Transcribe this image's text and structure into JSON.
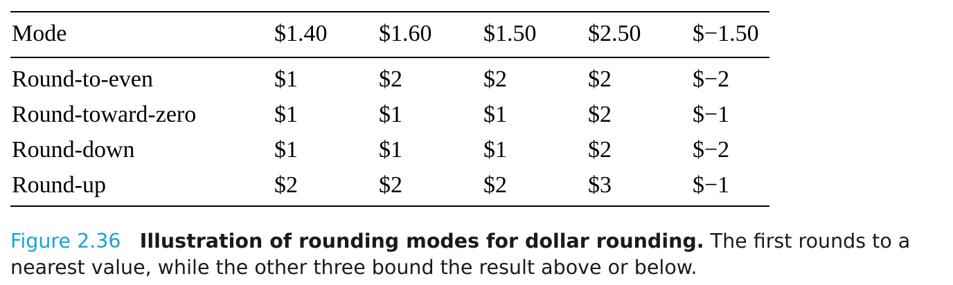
{
  "table": {
    "headers": [
      "Mode",
      "$1.40",
      "$1.60",
      "$1.50",
      "$2.50",
      "$−1.50"
    ],
    "rows": [
      [
        "Round-to-even",
        "$1",
        "$2",
        "$2",
        "$2",
        "$−2"
      ],
      [
        "Round-toward-zero",
        "$1",
        "$1",
        "$1",
        "$2",
        "$−1"
      ],
      [
        "Round-down",
        "$1",
        "$1",
        "$1",
        "$2",
        "$−2"
      ],
      [
        "Round-up",
        "$2",
        "$2",
        "$2",
        "$3",
        "$−1"
      ]
    ]
  },
  "caption": {
    "label": "Figure 2.36",
    "title": "Illustration of rounding modes for dollar rounding.",
    "text": "The first rounds to a nearest value, while the other three bound the result above or below."
  },
  "colors": {
    "figure_label": "#1ba3d6",
    "text": "#000000"
  }
}
